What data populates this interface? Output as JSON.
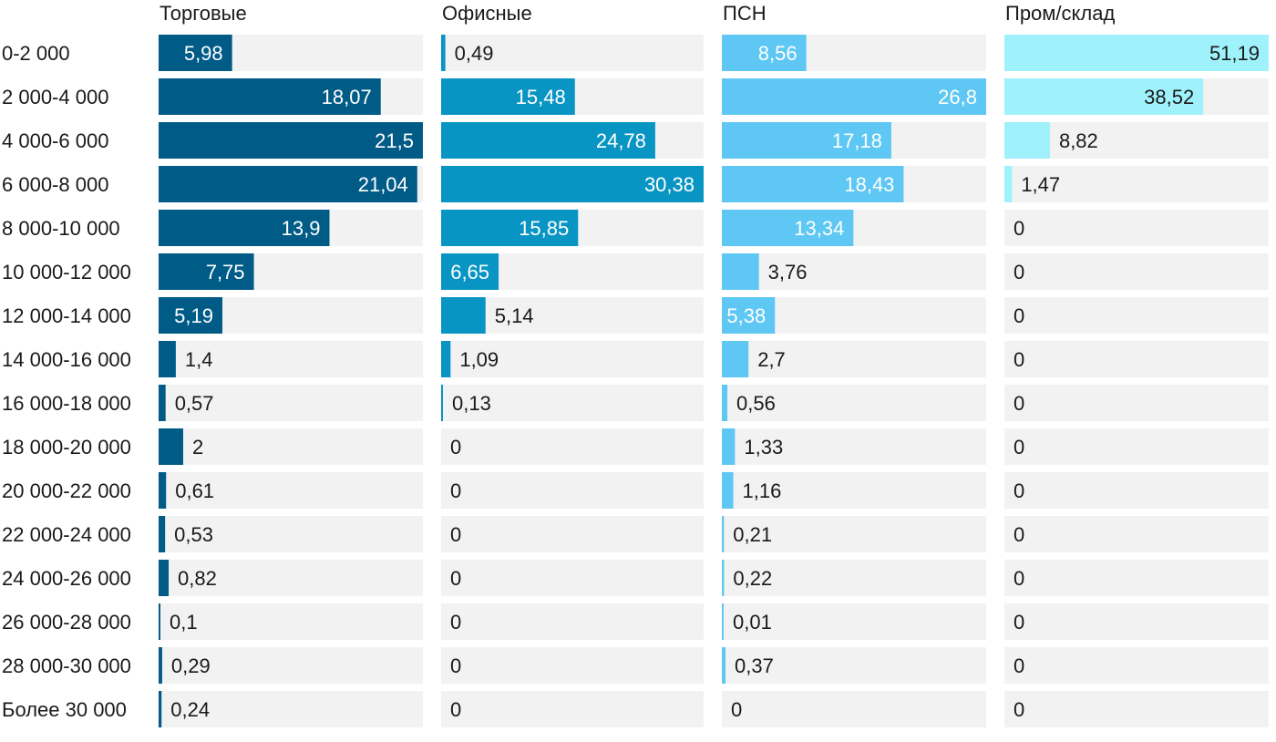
{
  "chart_data": {
    "type": "bar",
    "orientation": "horizontal",
    "layout": "small-multiples",
    "grid": false,
    "legend": "none",
    "categories": [
      "0-2 000",
      "2 000-4 000",
      "4 000-6 000",
      "6 000-8 000",
      "8 000-10 000",
      "10 000-12 000",
      "12 000-14 000",
      "14 000-16 000",
      "16 000-18 000",
      "18 000-20 000",
      "20 000-22 000",
      "22 000-24 000",
      "24 000-26 000",
      "26 000-28 000",
      "28 000-30 000",
      "Более 30 000"
    ],
    "series": [
      {
        "name": "Торговые",
        "color": "#005b87",
        "values": [
          5.98,
          18.07,
          21.5,
          21.04,
          13.9,
          7.75,
          5.19,
          1.4,
          0.57,
          2,
          0.61,
          0.53,
          0.82,
          0.1,
          0.29,
          0.24
        ],
        "labels": [
          "5,98",
          "18,07",
          "21,5",
          "21,04",
          "13,9",
          "7,75",
          "5,19",
          "1,4",
          "0,57",
          "2",
          "0,61",
          "0,53",
          "0,82",
          "0,1",
          "0,29",
          "0,24"
        ]
      },
      {
        "name": "Офисные",
        "color": "#0895c3",
        "values": [
          0.49,
          15.48,
          24.78,
          30.38,
          15.85,
          6.65,
          5.14,
          1.09,
          0.13,
          0,
          0,
          0,
          0,
          0,
          0,
          0
        ],
        "labels": [
          "0,49",
          "15,48",
          "24,78",
          "30,38",
          "15,85",
          "6,65",
          "5,14",
          "1,09",
          "0,13",
          "0",
          "0",
          "0",
          "0",
          "0",
          "0",
          "0"
        ]
      },
      {
        "name": "ПСН",
        "color": "#5ec7f3",
        "values": [
          8.56,
          26.8,
          17.18,
          18.43,
          13.34,
          3.76,
          5.38,
          2.7,
          0.56,
          1.33,
          1.16,
          0.21,
          0.22,
          0.01,
          0.37,
          0
        ],
        "labels": [
          "8,56",
          "26,8",
          "17,18",
          "18,43",
          "13,34",
          "3,76",
          "5,38",
          "2,7",
          "0,56",
          "1,33",
          "1,16",
          "0,21",
          "0,22",
          "0,01",
          "0,37",
          "0"
        ]
      },
      {
        "name": "Пром/склад",
        "color": "#9ff2fb",
        "values": [
          51.19,
          38.52,
          8.82,
          1.47,
          0,
          0,
          0,
          0,
          0,
          0,
          0,
          0,
          0,
          0,
          0,
          0
        ],
        "labels": [
          "51,19",
          "38,52",
          "8,82",
          "1,47",
          "0",
          "0",
          "0",
          "0",
          "0",
          "0",
          "0",
          "0",
          "0",
          "0",
          "0",
          "0"
        ]
      }
    ],
    "track_color": "#f2f2f2"
  }
}
